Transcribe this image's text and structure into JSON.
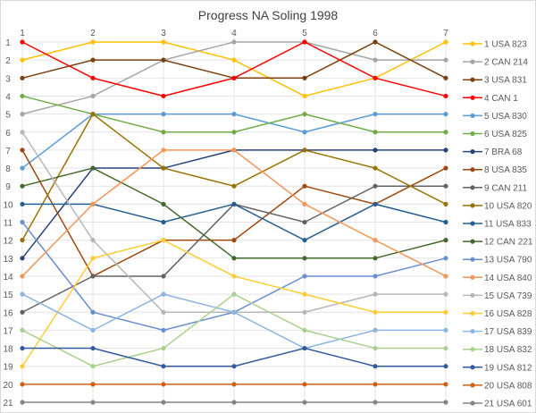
{
  "chart_data": {
    "type": "line",
    "title": "Progress NA Soling 1998",
    "x": [
      1,
      2,
      3,
      4,
      5,
      6,
      7
    ],
    "y_axis": {
      "reversed": true,
      "range": [
        1,
        21
      ],
      "ticks": [
        1,
        2,
        3,
        4,
        5,
        6,
        7,
        8,
        9,
        10,
        11,
        12,
        13,
        14,
        15,
        16,
        17,
        18,
        19,
        20,
        21
      ]
    },
    "x_axis_position": "top",
    "grid": true,
    "legend_position": "right",
    "series": [
      {
        "name": "1 USA 823",
        "color": "#FFC000",
        "values": [
          2,
          1,
          1,
          2,
          4,
          3,
          1
        ]
      },
      {
        "name": "2 CAN 214",
        "color": "#A5A5A5",
        "values": [
          5,
          4,
          2,
          1,
          1,
          2,
          2
        ]
      },
      {
        "name": "3 USA 831",
        "color": "#7B3F10",
        "values": [
          3,
          2,
          2,
          3,
          3,
          1,
          3
        ]
      },
      {
        "name": "4 CAN 1",
        "color": "#FF0000",
        "values": [
          1,
          3,
          4,
          3,
          1,
          3,
          4
        ]
      },
      {
        "name": "5 USA 830",
        "color": "#5B9BD5",
        "values": [
          8,
          5,
          5,
          5,
          6,
          5,
          5
        ]
      },
      {
        "name": "6 USA 825",
        "color": "#70AD47",
        "values": [
          4,
          5,
          6,
          6,
          5,
          6,
          6
        ]
      },
      {
        "name": "7 BRA 68",
        "color": "#264478",
        "values": [
          13,
          8,
          8,
          7,
          7,
          7,
          7
        ]
      },
      {
        "name": "8 USA 835",
        "color": "#9E480E",
        "values": [
          7,
          14,
          12,
          12,
          9,
          10,
          8
        ]
      },
      {
        "name": "9 CAN 211",
        "color": "#636363",
        "values": [
          16,
          14,
          14,
          10,
          11,
          9,
          9
        ]
      },
      {
        "name": "10 USA 820",
        "color": "#997300",
        "values": [
          12,
          5,
          8,
          9,
          7,
          8,
          10
        ]
      },
      {
        "name": "11 USA 833",
        "color": "#255E91",
        "values": [
          10,
          10,
          11,
          10,
          12,
          10,
          11
        ]
      },
      {
        "name": "12 CAN 221",
        "color": "#43682B",
        "values": [
          9,
          8,
          10,
          13,
          13,
          13,
          12
        ]
      },
      {
        "name": "13 USA 790",
        "color": "#698ED0",
        "values": [
          11,
          16,
          17,
          16,
          14,
          14,
          13
        ]
      },
      {
        "name": "14 USA 840",
        "color": "#F1975A",
        "values": [
          14,
          10,
          7,
          7,
          10,
          12,
          14
        ]
      },
      {
        "name": "15 USA 739",
        "color": "#B7B7B7",
        "values": [
          6,
          12,
          16,
          16,
          16,
          15,
          15
        ]
      },
      {
        "name": "16 USA 828",
        "color": "#FFCD33",
        "values": [
          19,
          13,
          12,
          14,
          15,
          16,
          16
        ]
      },
      {
        "name": "17 USA 839",
        "color": "#8CB4E2",
        "values": [
          15,
          17,
          15,
          16,
          18,
          17,
          17
        ]
      },
      {
        "name": "18 USA 832",
        "color": "#A9D18E",
        "values": [
          17,
          19,
          18,
          15,
          17,
          18,
          18
        ]
      },
      {
        "name": "19 USA 812",
        "color": "#335AA1",
        "values": [
          18,
          18,
          19,
          19,
          18,
          19,
          19
        ]
      },
      {
        "name": "20 USA 808",
        "color": "#D26012",
        "values": [
          20,
          20,
          20,
          20,
          20,
          20,
          20
        ]
      },
      {
        "name": "21 USA 601",
        "color": "#848484",
        "values": [
          21,
          21,
          21,
          21,
          21,
          21,
          21
        ]
      }
    ]
  }
}
